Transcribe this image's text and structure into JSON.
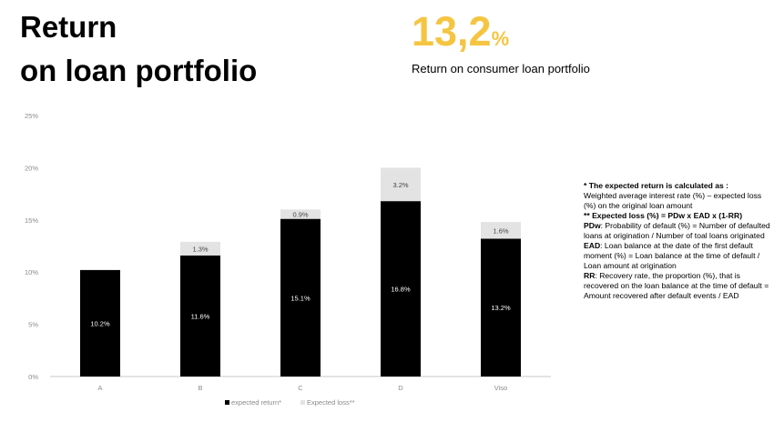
{
  "header": {
    "title_line1": "Return",
    "title_line2": "on loan portfolio"
  },
  "kpi": {
    "value": "13,2",
    "unit": "%",
    "caption": "Return on consumer loan portfolio",
    "color": "#f5c542"
  },
  "chart_data": {
    "type": "bar",
    "stacked": true,
    "categories": [
      "A",
      "B",
      "C",
      "D",
      "Viso"
    ],
    "series": [
      {
        "name": "expected return*",
        "color": "#000000",
        "values": [
          10.2,
          11.6,
          15.1,
          16.8,
          13.2
        ],
        "labels": [
          "10.2%",
          "11.6%",
          "15.1%",
          "16.8%",
          "13.2%"
        ]
      },
      {
        "name": "Expected loss**",
        "color": "#e3e3e3",
        "values": [
          0,
          1.3,
          0.9,
          3.2,
          1.6
        ],
        "labels": [
          "",
          "1.3%",
          "0.9%",
          "3.2%",
          "1.6%"
        ]
      }
    ],
    "ylim": [
      0,
      25
    ],
    "yticks": [
      "0%",
      "5%",
      "10%",
      "15%",
      "20%",
      "25%"
    ],
    "grid": false,
    "legend_position": "bottom"
  },
  "notes": [
    {
      "bold": "* The expected return is calculated as :",
      "text": ""
    },
    {
      "bold": "",
      "text": "Weighted average interest rate (%) – expected loss (%) on the original loan amount"
    },
    {
      "bold": "** Expected loss (%) = PDw x EAD x (1-RR)",
      "text": ""
    },
    {
      "bold": "PDw",
      "text": ": Probability of default (%) = Number of defaulted loans at origination / Number of toal loans originated"
    },
    {
      "bold": "EAD",
      "text": ": Loan balance at the date of the first default moment (%) = Loan balance at the time of default / Loan amount at origination"
    },
    {
      "bold": "RR",
      "text": ": Recovery rate, the proportion (%), that is recovered on the loan balance at the time of default = Amount recovered after default events / EAD"
    }
  ]
}
